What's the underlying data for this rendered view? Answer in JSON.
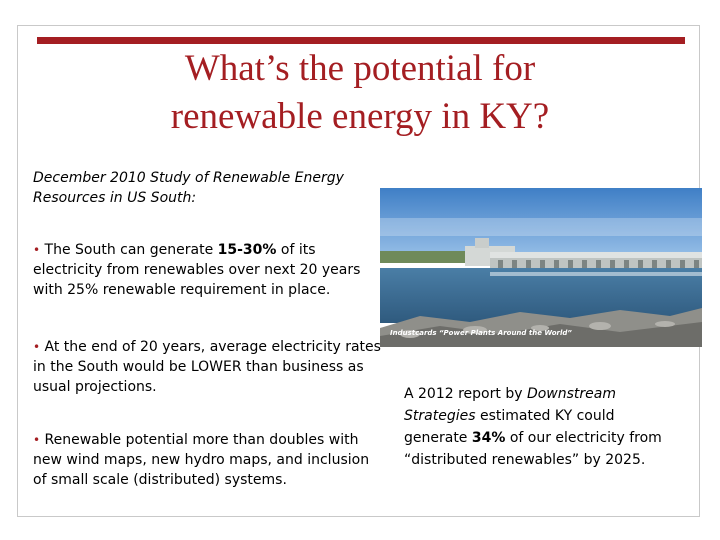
{
  "slide": {
    "title_line1": "What’s the potential for",
    "title_line2": "renewable energy in KY?",
    "intro": "December 2010 Study of Renewable Energy Resources in US South:",
    "bullet_symbol": "•",
    "bullets": [
      {
        "before": "The South can generate ",
        "bold": "15-30%",
        "after": " of its electricity from renewables over next 20 years with 25% renewable requirement in place."
      },
      {
        "text": "At the end of 20 years, average electricity rates in the South would be LOWER than business as usual projections."
      },
      {
        "text": "Renewable potential more than doubles with new wind maps, new hydro maps, and inclusion of small scale (distributed) systems."
      }
    ],
    "photo_caption": "Industcards “Power Plants Around the World”",
    "side_note": {
      "part1": "A 2012 report by ",
      "italic": "Downstream Strategies",
      "part2": " estimated KY could generate ",
      "bold": "34%",
      "part3": " of our electricity from “distributed renewables” by 2025."
    }
  },
  "colors": {
    "accent": "#a41e22",
    "sky": "#4f8fd0",
    "water": "#3e6f96",
    "dam": "#bfc4c2"
  }
}
